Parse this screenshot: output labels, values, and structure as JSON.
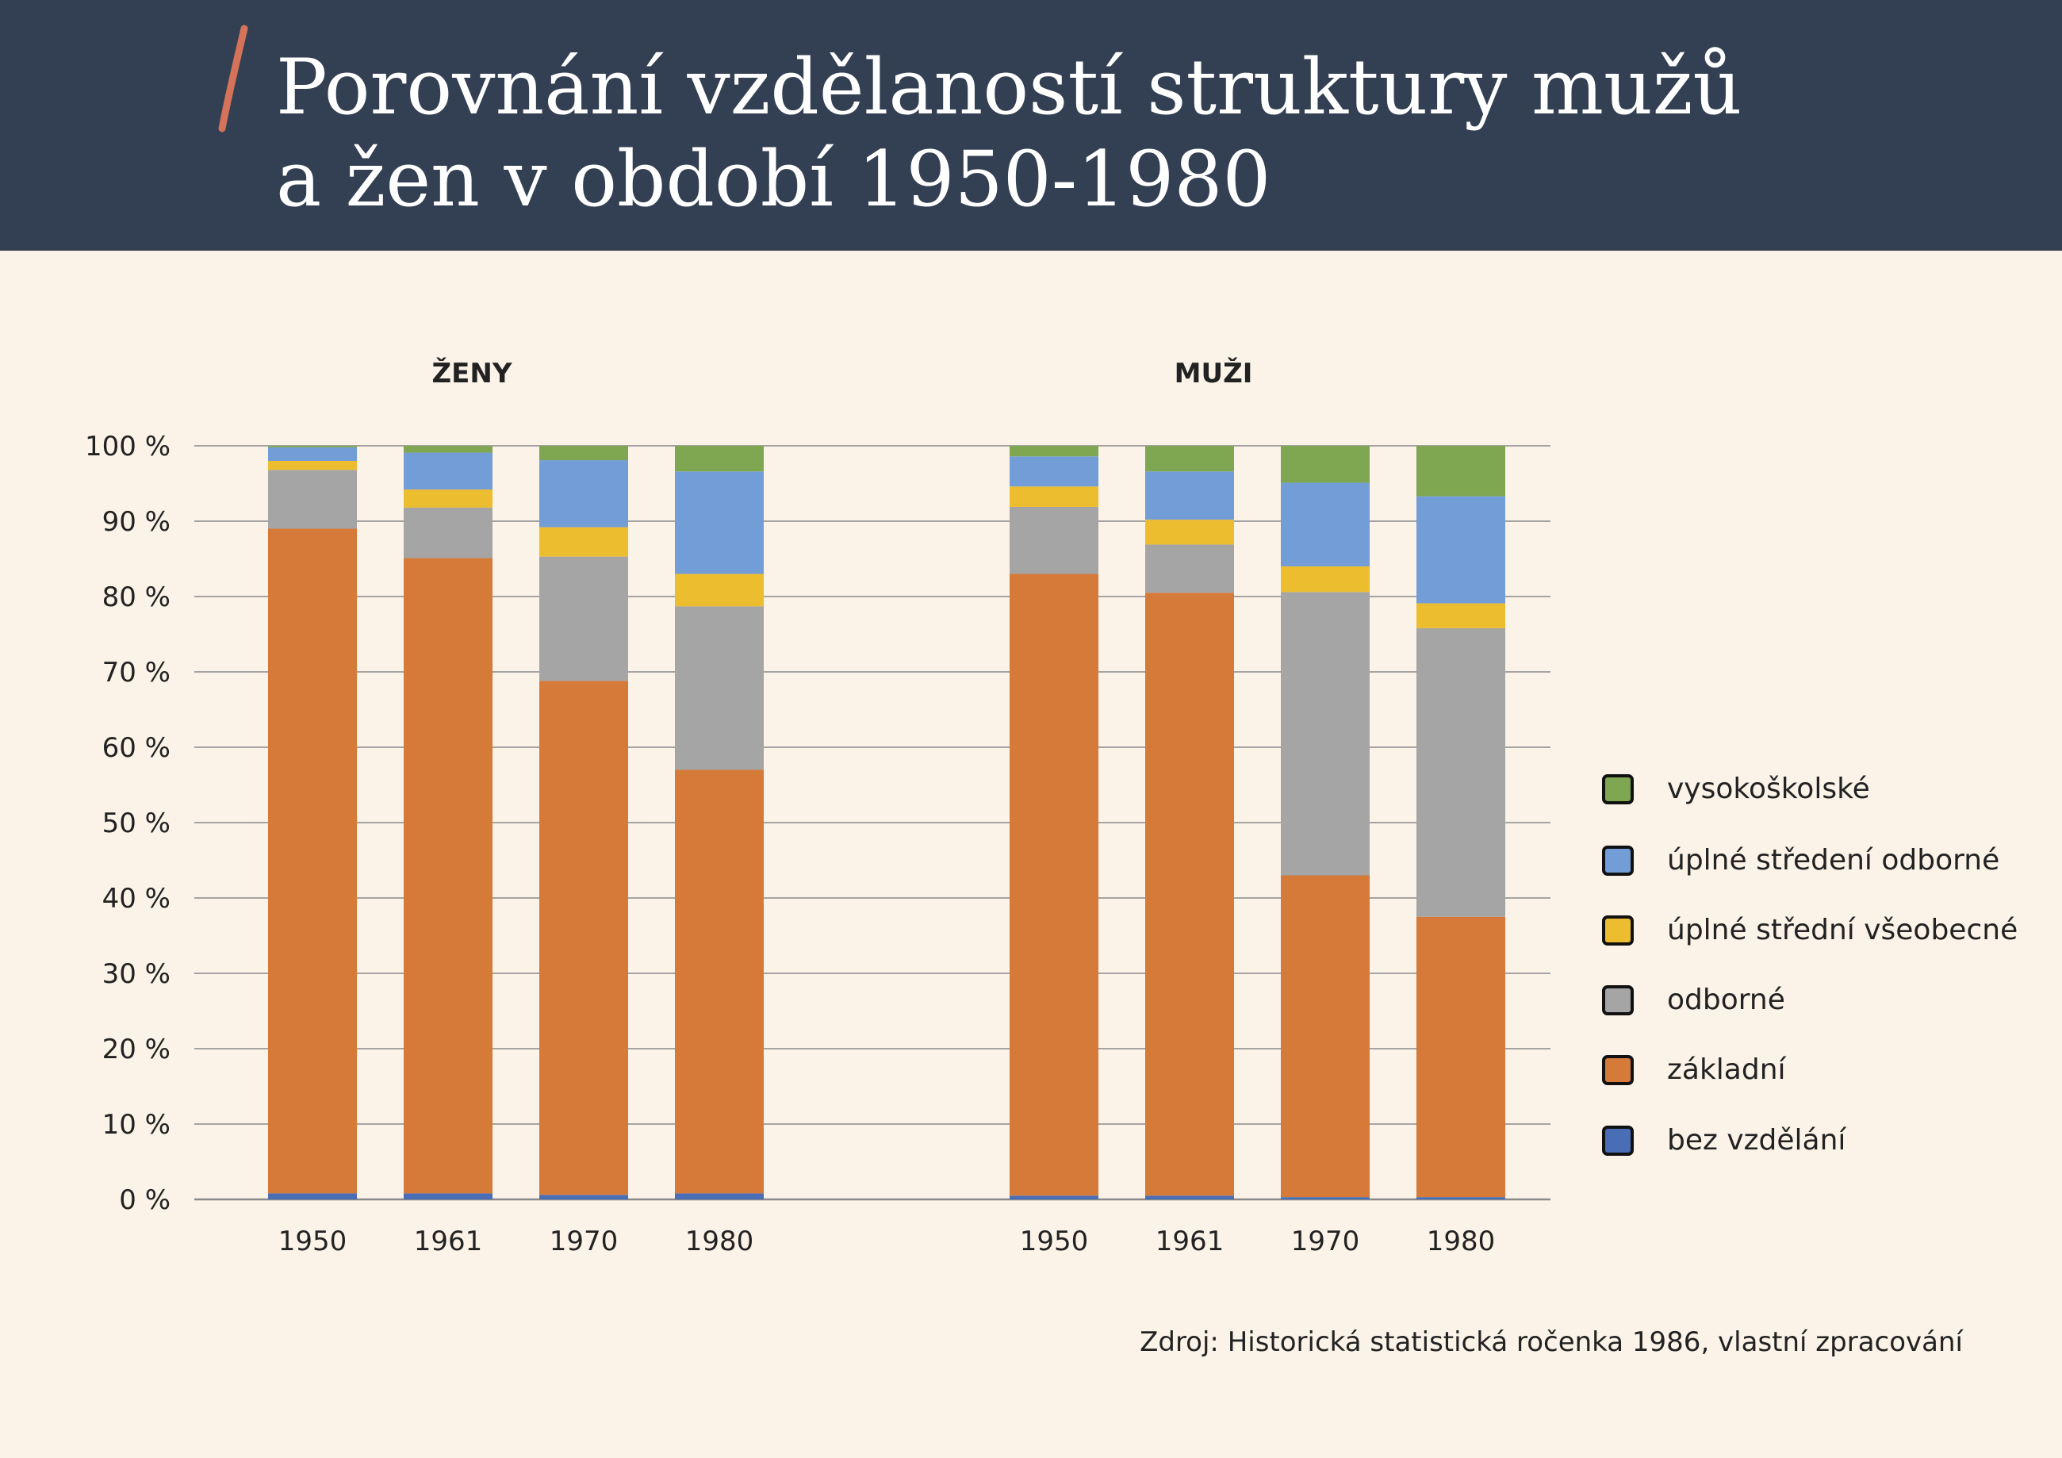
{
  "title": {
    "line1": "Porovnání vzdělaností struktury mužů",
    "line2": "a žen v období 1950-1980"
  },
  "source": "Zdroj: Historická statistická ročenka 1986, vlastní zpracování",
  "colors": {
    "header_bg": "#333f52",
    "background": "#fbf2e8",
    "accent": "#d4735a"
  },
  "chart_data": {
    "type": "bar",
    "stacked": true,
    "ylim": [
      0,
      100
    ],
    "yticks": [
      "0 %",
      "10 %",
      "20 %",
      "30 %",
      "40 %",
      "50 %",
      "60 %",
      "70 %",
      "80 %",
      "90 %",
      "100 %"
    ],
    "grid": true,
    "legend_position": "right",
    "categories": [
      "1950",
      "1961",
      "1970",
      "1980"
    ],
    "series_names": [
      "bez vzdělání",
      "základní",
      "odborné",
      "úplné střední všeobecné",
      "úplné středení odborné",
      "vysokoškolské"
    ],
    "series_colors": [
      "#4a6eb5",
      "#d67a3a",
      "#a5a5a5",
      "#edbd30",
      "#729dd6",
      "#7fa650"
    ],
    "legend_order": [
      "vysokoškolské",
      "úplné středení odborné",
      "úplné střední všeobecné",
      "odborné",
      "základní",
      "bez vzdělání"
    ],
    "panels": [
      {
        "title": "ŽENY",
        "stacks": [
          [
            0.8,
            88.2,
            7.8,
            1.2,
            1.8,
            0.2
          ],
          [
            0.8,
            84.3,
            6.7,
            2.4,
            4.9,
            0.9
          ],
          [
            0.6,
            68.2,
            16.5,
            3.9,
            8.9,
            1.9
          ],
          [
            0.8,
            56.2,
            21.7,
            4.3,
            13.6,
            3.4
          ]
        ]
      },
      {
        "title": "MUŽI",
        "stacks": [
          [
            0.5,
            82.5,
            8.9,
            2.7,
            4.0,
            1.4
          ],
          [
            0.5,
            80.0,
            6.4,
            3.3,
            6.4,
            3.4
          ],
          [
            0.3,
            42.7,
            37.6,
            3.4,
            11.1,
            4.9
          ],
          [
            0.3,
            37.2,
            38.3,
            3.3,
            14.2,
            6.7
          ]
        ]
      }
    ]
  }
}
